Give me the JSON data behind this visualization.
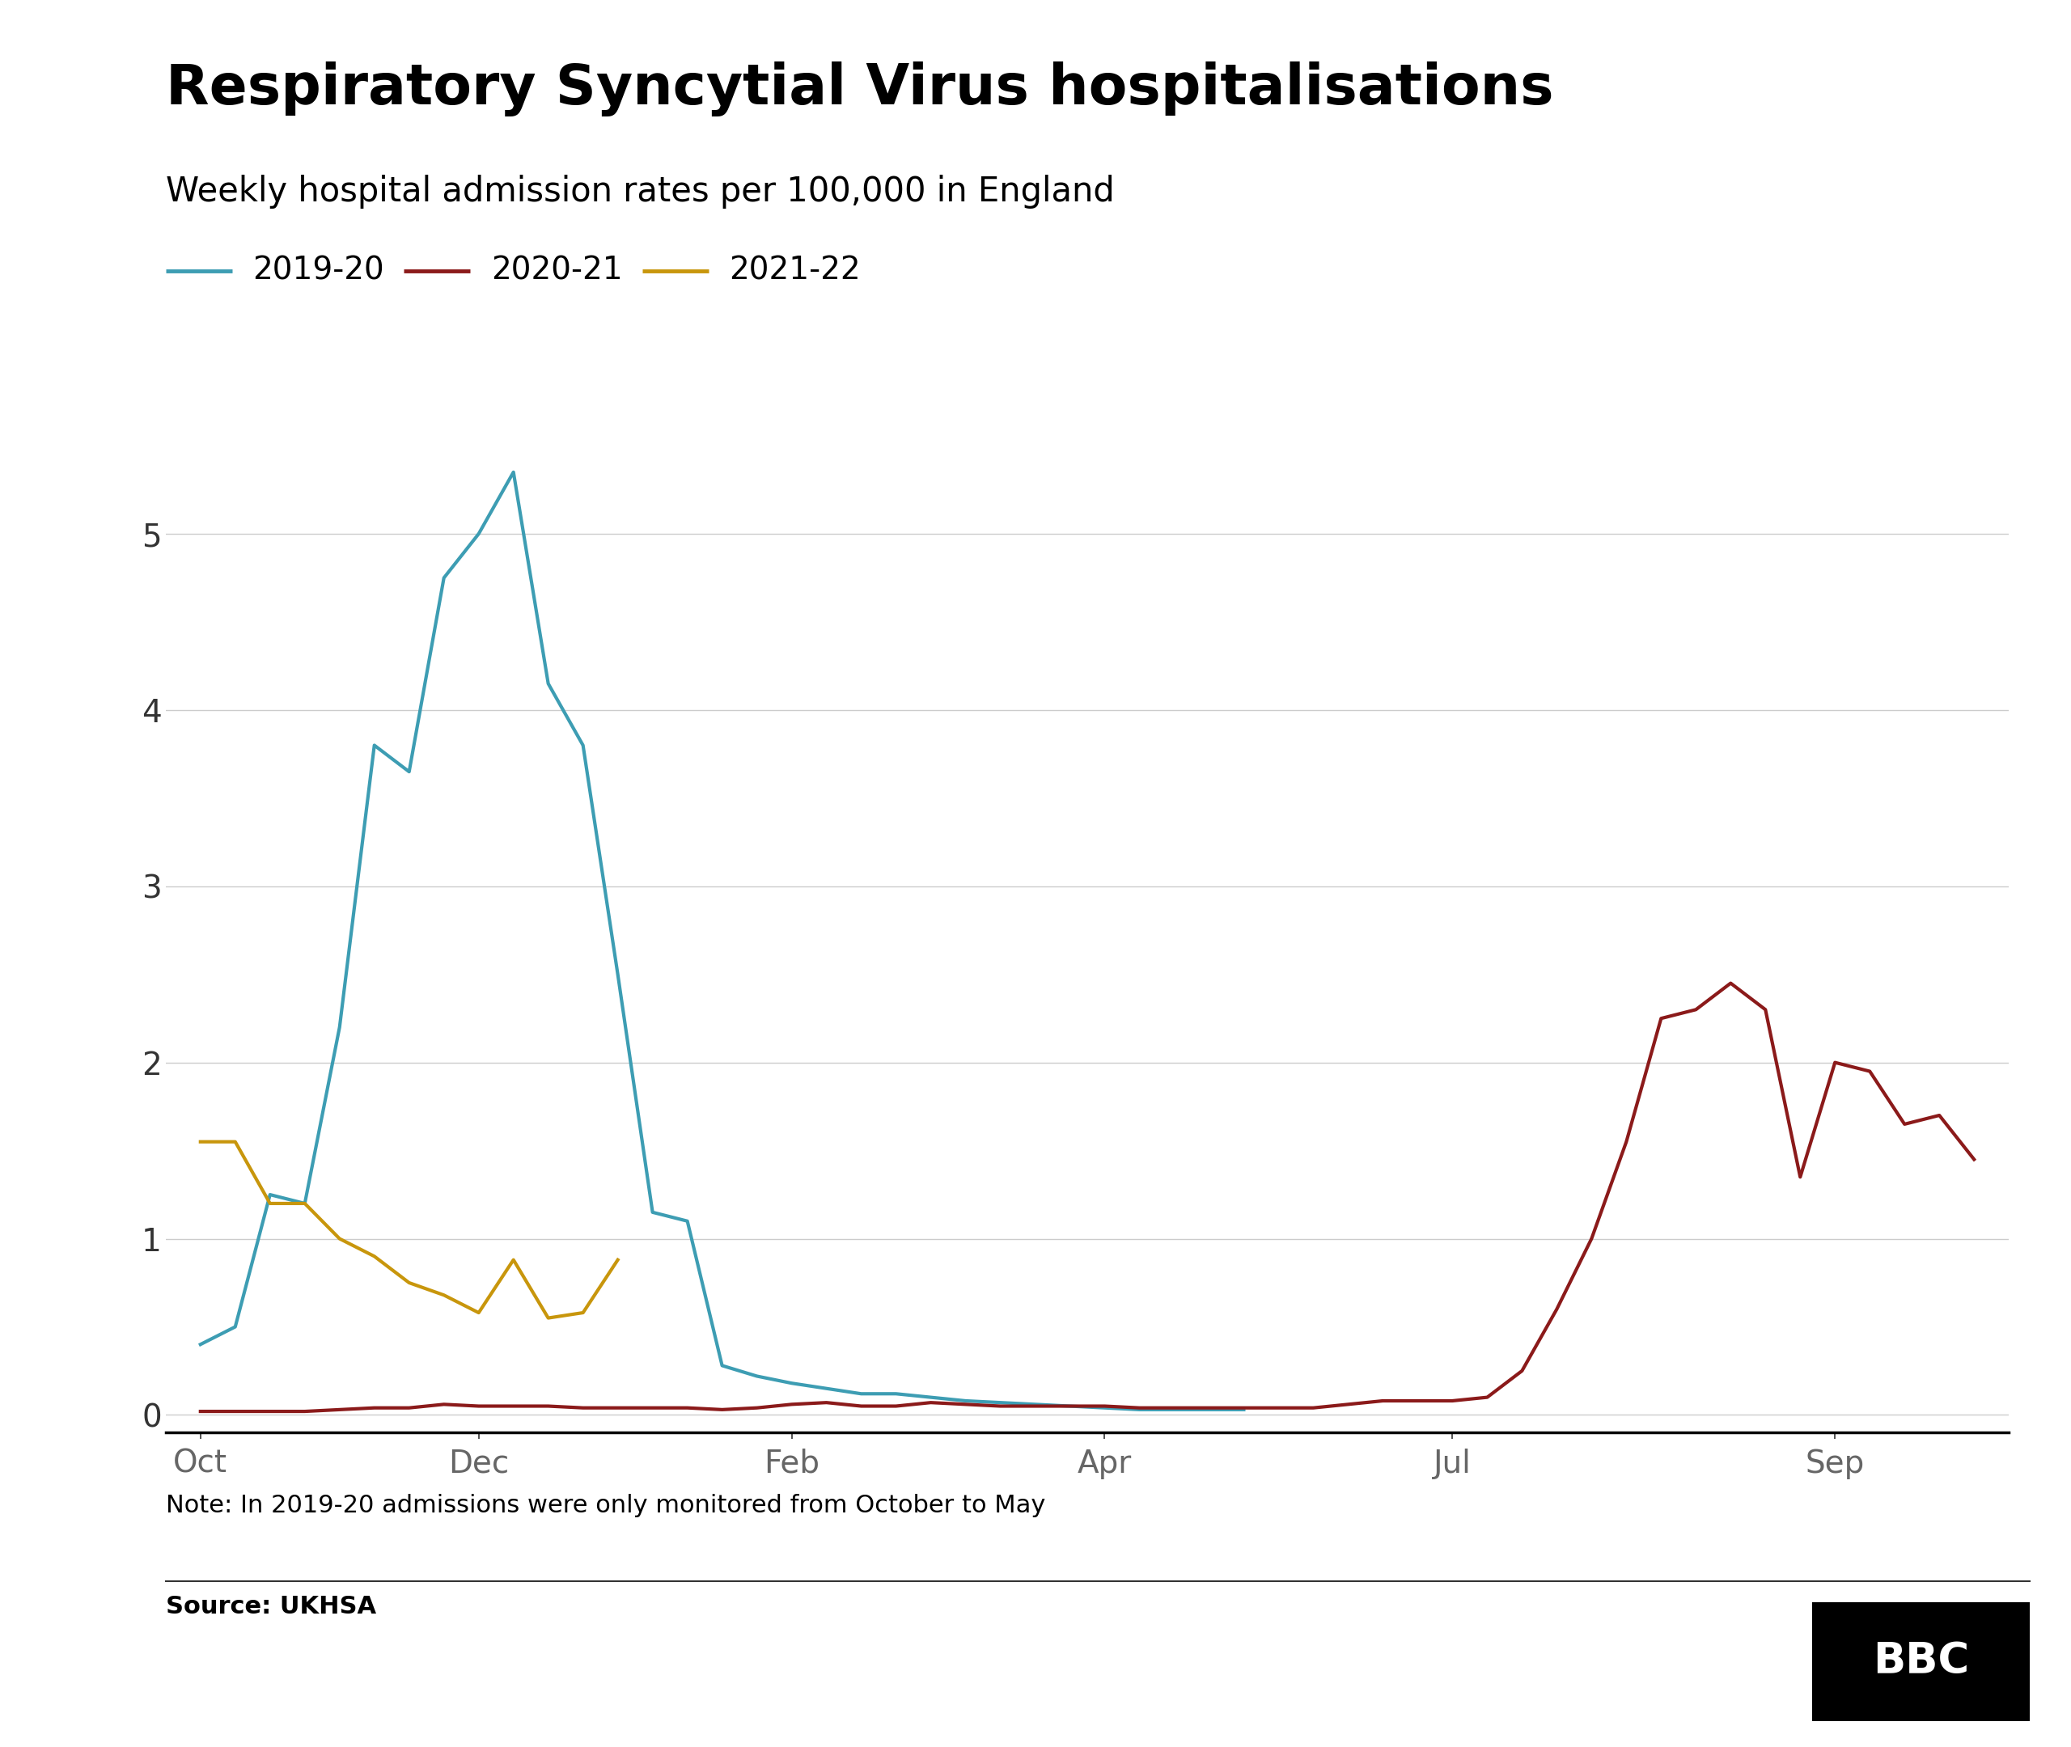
{
  "title": "Respiratory Syncytial Virus hospitalisations",
  "subtitle": "Weekly hospital admission rates per 100,000 in England",
  "note": "Note: In 2019-20 admissions were only monitored from October to May",
  "source": "Source: UKHSA",
  "colors": {
    "2019-20": "#3d9db3",
    "2020-21": "#8b1a1a",
    "2021-22": "#c8960c"
  },
  "series_2019_20_x": [
    0,
    1,
    2,
    3,
    4,
    5,
    6,
    7,
    8,
    9,
    10,
    11,
    12,
    13,
    14,
    15,
    16,
    17,
    18,
    19,
    20,
    21,
    22,
    23,
    24,
    25,
    26,
    27,
    28,
    29,
    30
  ],
  "series_2019_20_y": [
    0.4,
    0.5,
    1.25,
    1.2,
    2.2,
    3.8,
    3.65,
    4.75,
    5.0,
    5.35,
    4.15,
    3.8,
    2.5,
    1.15,
    1.1,
    0.28,
    0.22,
    0.18,
    0.15,
    0.12,
    0.12,
    0.1,
    0.08,
    0.07,
    0.06,
    0.05,
    0.04,
    0.03,
    0.03,
    0.03,
    0.03
  ],
  "series_2020_21_x": [
    0,
    1,
    2,
    3,
    4,
    5,
    6,
    7,
    8,
    9,
    10,
    11,
    12,
    13,
    14,
    15,
    16,
    17,
    18,
    19,
    20,
    21,
    22,
    23,
    24,
    25,
    26,
    27,
    28,
    29,
    30,
    31,
    32,
    33,
    34,
    35,
    36,
    37,
    38,
    39,
    40,
    41,
    42,
    43,
    44,
    45,
    46,
    47,
    48,
    49,
    50,
    51
  ],
  "series_2020_21_y": [
    0.02,
    0.02,
    0.02,
    0.02,
    0.03,
    0.04,
    0.04,
    0.06,
    0.05,
    0.05,
    0.05,
    0.04,
    0.04,
    0.04,
    0.04,
    0.03,
    0.04,
    0.06,
    0.07,
    0.05,
    0.05,
    0.07,
    0.06,
    0.05,
    0.05,
    0.05,
    0.05,
    0.04,
    0.04,
    0.04,
    0.04,
    0.04,
    0.04,
    0.06,
    0.08,
    0.08,
    0.08,
    0.1,
    0.25,
    0.6,
    1.0,
    1.55,
    2.25,
    2.3,
    2.45,
    2.3,
    1.35,
    2.0,
    1.95,
    1.65,
    1.7,
    1.45
  ],
  "series_2021_22_x": [
    0,
    1,
    2,
    3,
    4,
    5,
    6,
    7,
    8,
    9,
    10,
    11,
    12
  ],
  "series_2021_22_y": [
    1.55,
    1.55,
    1.2,
    1.2,
    1.0,
    0.9,
    0.75,
    0.68,
    0.58,
    0.88,
    0.55,
    0.58,
    0.88
  ],
  "xtick_weeks": [
    0,
    8,
    17,
    26,
    36,
    47
  ],
  "xtick_labels": [
    "Oct",
    "Dec",
    "Feb",
    "Apr",
    "Jul",
    "Sep"
  ],
  "yticks": [
    0,
    1,
    2,
    3,
    4,
    5
  ],
  "xlim_min": -1,
  "xlim_max": 52,
  "ylim_min": -0.1,
  "ylim_max": 5.65,
  "linewidth": 3.0,
  "title_fontsize": 50,
  "subtitle_fontsize": 30,
  "legend_fontsize": 28,
  "tick_fontsize": 28,
  "note_fontsize": 22,
  "source_fontsize": 22
}
